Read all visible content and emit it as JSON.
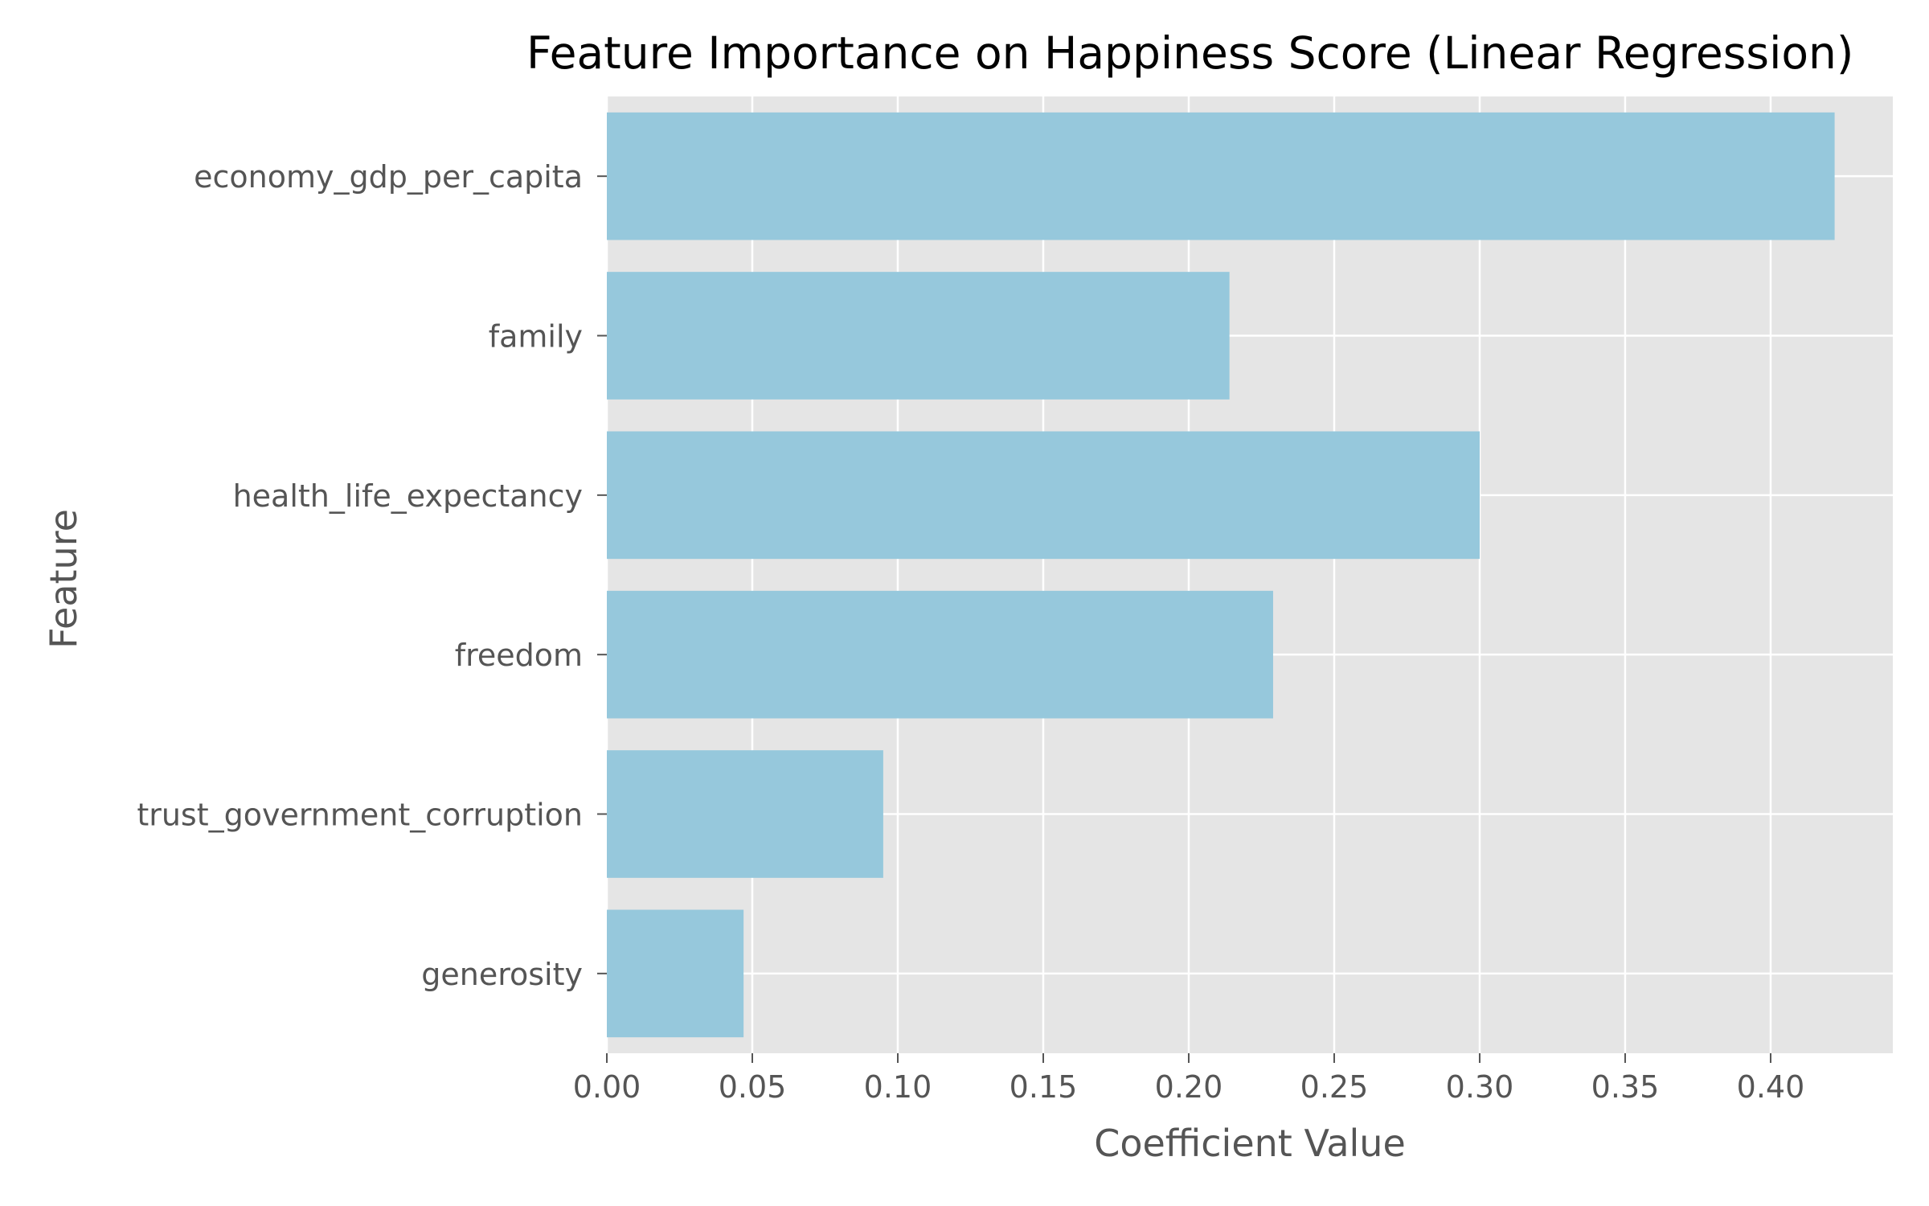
{
  "chart_data": {
    "type": "bar",
    "orientation": "horizontal",
    "title": "Feature Importance on Happiness Score (Linear Regression)",
    "xlabel": "Coefficient Value",
    "ylabel": "Feature",
    "categories": [
      "economy_gdp_per_capita",
      "family",
      "health_life_expectancy",
      "freedom",
      "trust_government_corruption",
      "generosity"
    ],
    "values": [
      0.422,
      0.214,
      0.3,
      0.229,
      0.095,
      0.047
    ],
    "xlim": [
      0,
      0.442
    ],
    "xticks": [
      0.0,
      0.05,
      0.1,
      0.15,
      0.2,
      0.25,
      0.3,
      0.35,
      0.4
    ],
    "xtick_labels": [
      "0.00",
      "0.05",
      "0.10",
      "0.15",
      "0.20",
      "0.25",
      "0.30",
      "0.35",
      "0.40"
    ],
    "grid": true,
    "bar_color": "#96c8dc",
    "plot_background": "#e5e5e5",
    "grid_color": "#ffffff"
  }
}
